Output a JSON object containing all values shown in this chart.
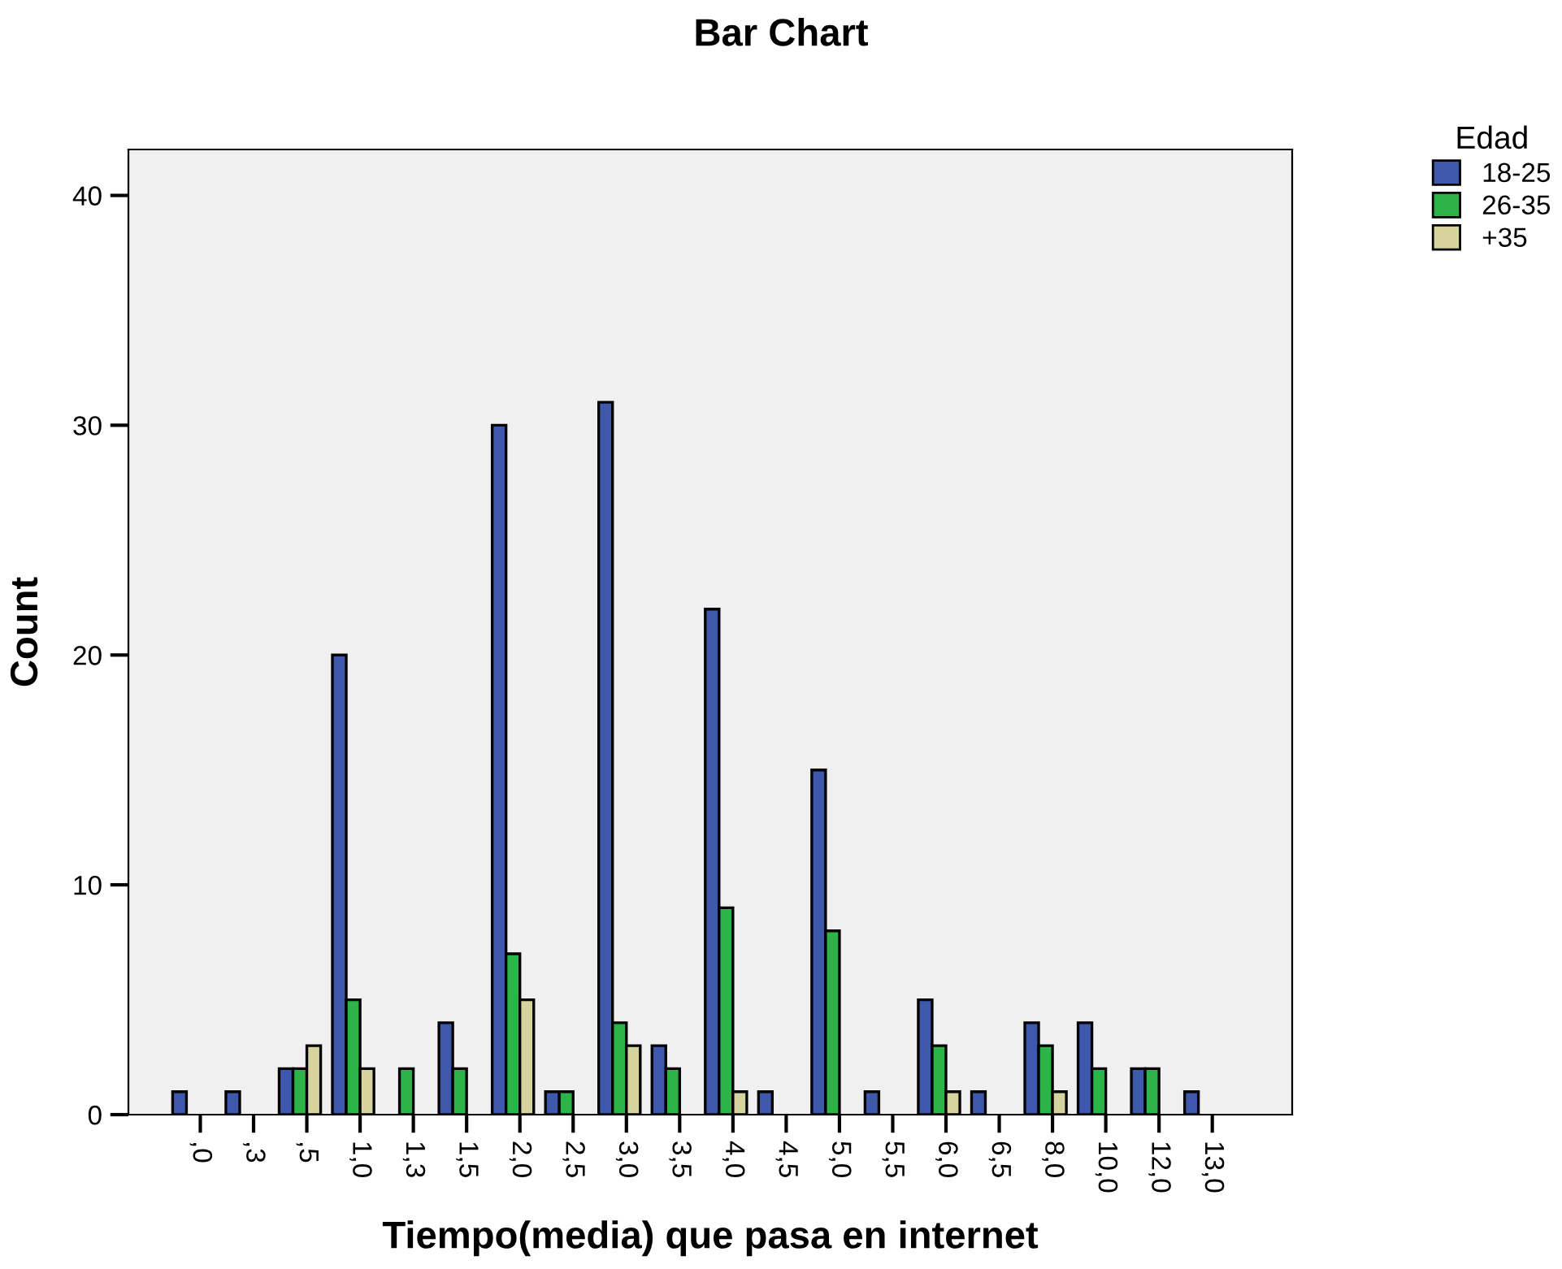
{
  "chart_data": {
    "type": "bar",
    "title": "Bar Chart",
    "xlabel": "Tiempo(media) que pasa en internet",
    "ylabel": "Count",
    "legend_title": "Edad",
    "legend": "top right",
    "grid": false,
    "categories": [
      ",0",
      ",3",
      ",5",
      "1,0",
      "1,3",
      "1,5",
      "2,0",
      "2,5",
      "3,0",
      "3,5",
      "4,0",
      "4,5",
      "5,0",
      "5,5",
      "6,0",
      "6,5",
      "8,0",
      "10,0",
      "12,0",
      "13,0"
    ],
    "series": [
      {
        "name": "18-25",
        "color": "#3e58ac",
        "values": [
          1,
          1,
          2,
          20,
          null,
          4,
          30,
          1,
          31,
          3,
          22,
          1,
          15,
          1,
          5,
          1,
          4,
          4,
          2,
          1
        ]
      },
      {
        "name": "26-35",
        "color": "#2db449",
        "values": [
          null,
          null,
          2,
          5,
          2,
          2,
          7,
          1,
          4,
          2,
          9,
          null,
          8,
          null,
          3,
          null,
          3,
          2,
          2,
          null
        ]
      },
      {
        "name": "+35",
        "color": "#d6d39e",
        "values": [
          null,
          null,
          3,
          2,
          null,
          null,
          5,
          null,
          3,
          null,
          1,
          null,
          null,
          null,
          1,
          null,
          1,
          null,
          null,
          null
        ]
      }
    ],
    "ylim": [
      0,
      42
    ],
    "yticks": [
      0,
      10,
      20,
      30,
      40
    ]
  }
}
